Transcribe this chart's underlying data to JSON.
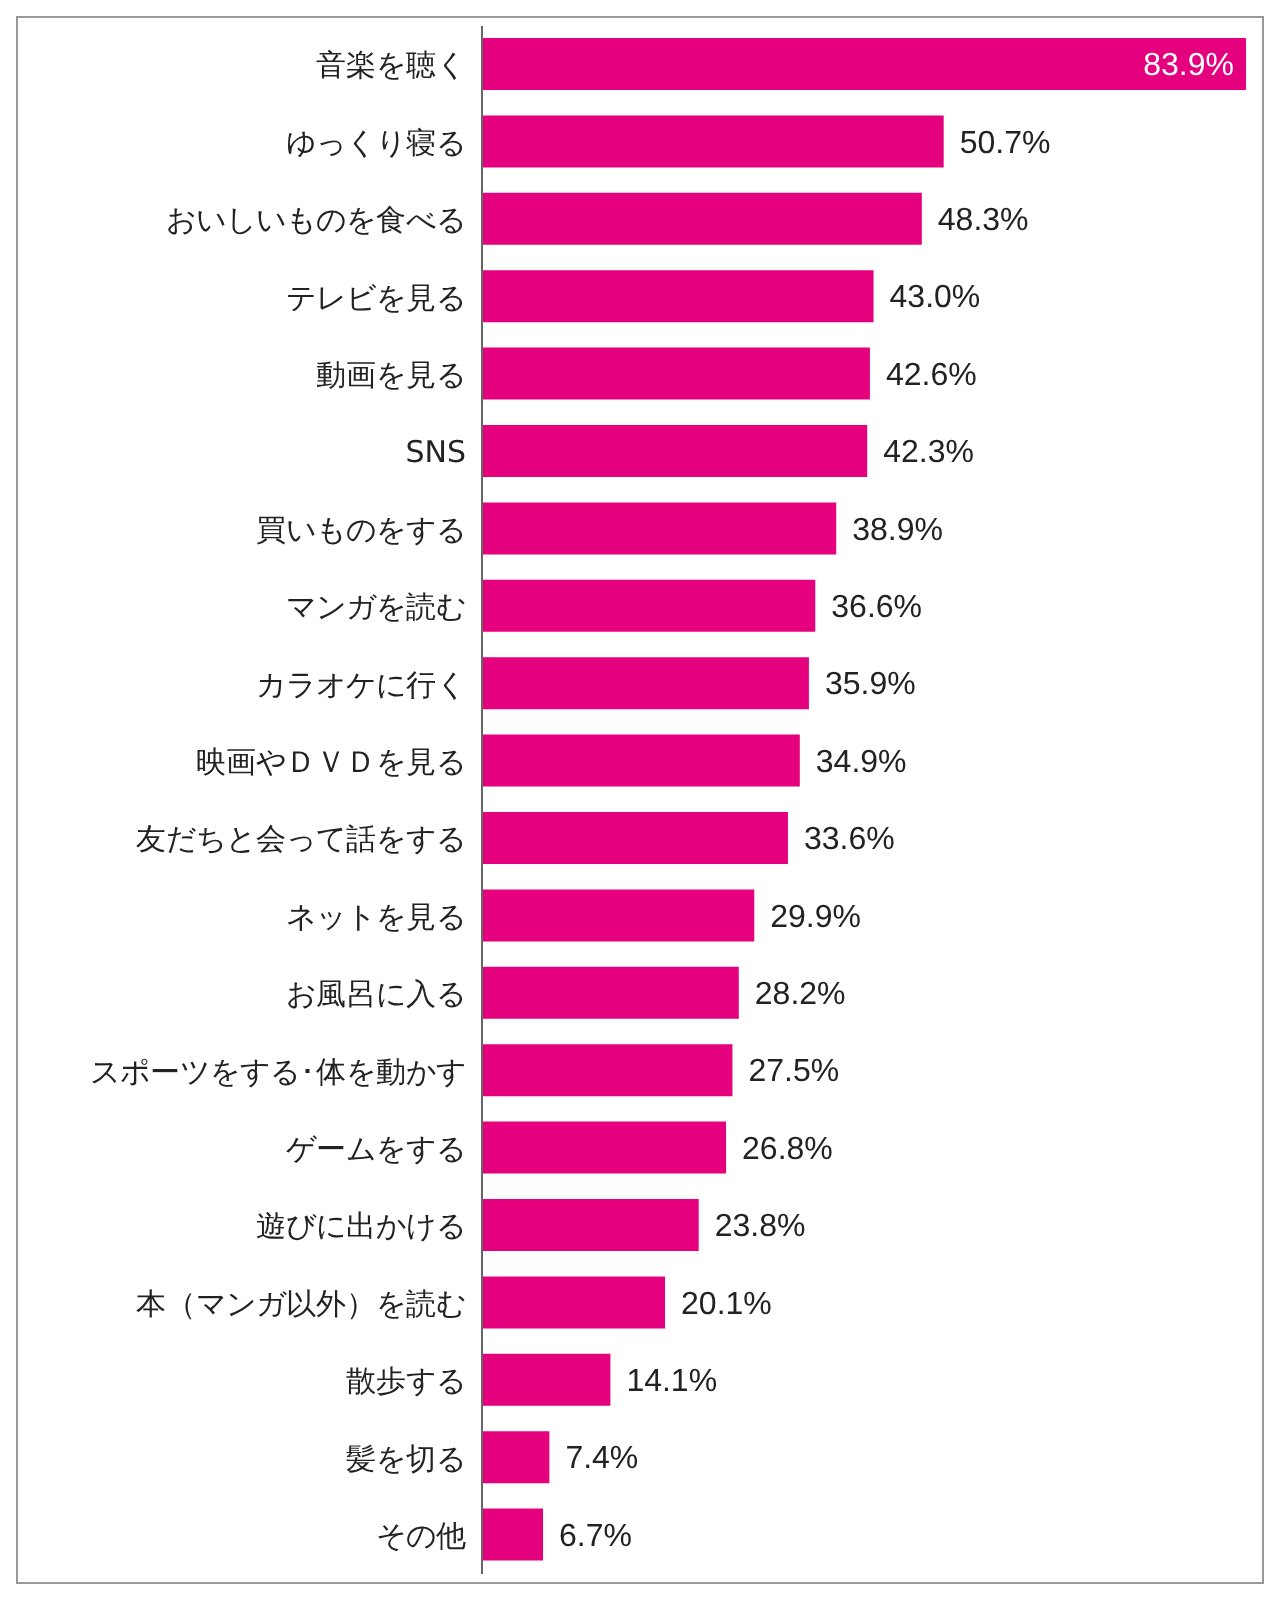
{
  "chart_data": {
    "type": "bar",
    "orientation": "horizontal",
    "categories": [
      "音楽を聴く",
      "ゆっくり寝る",
      "おいしいものを食べる",
      "テレビを見る",
      "動画を見る",
      "SNS",
      "買いものをする",
      "マンガを読む",
      "カラオケに行く",
      "映画やＤＶＤを見る",
      "友だちと会って話をする",
      "ネットを見る",
      "お風呂に入る",
      "スポーツをする･体を動かす",
      "ゲームをする",
      "遊びに出かける",
      "本（マンガ以外）を読む",
      "散歩する",
      "髪を切る",
      "その他"
    ],
    "values": [
      83.9,
      50.7,
      48.3,
      43.0,
      42.6,
      42.3,
      38.9,
      36.6,
      35.9,
      34.9,
      33.6,
      29.9,
      28.2,
      27.5,
      26.8,
      23.8,
      20.1,
      14.1,
      7.4,
      6.7
    ],
    "value_labels": [
      "83.9%",
      "50.7%",
      "48.3%",
      "43.0%",
      "42.6%",
      "42.3%",
      "38.9%",
      "36.6%",
      "35.9%",
      "34.9%",
      "33.6%",
      "29.9%",
      "28.2%",
      "27.5%",
      "26.8%",
      "23.8%",
      "20.1%",
      "14.1%",
      "7.4%",
      "6.7%"
    ],
    "color": "#e5007e",
    "grid": false,
    "legend": false
  }
}
